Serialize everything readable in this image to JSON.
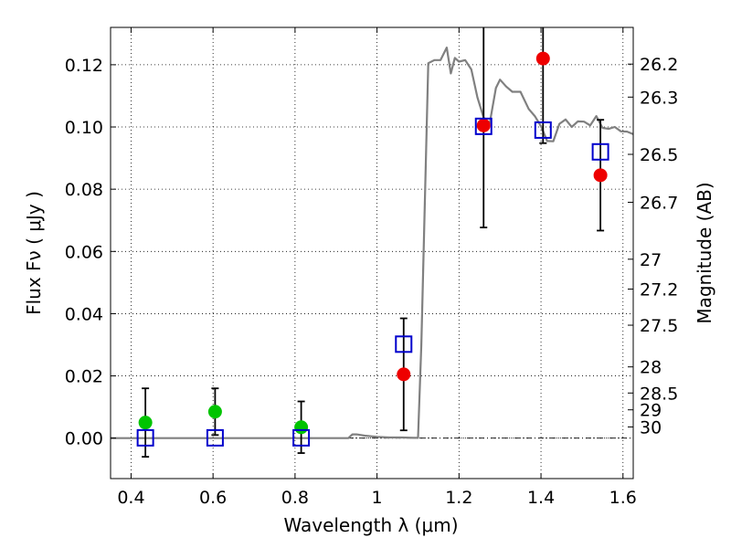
{
  "chart_data": {
    "type": "scatter",
    "title": "",
    "xlabel": "Wavelength  λ (μm)",
    "ylabel": "Flux  Fν  ( μJy )",
    "ylabel_right": "Magnitude (AB)",
    "xlim": [
      0.35,
      1.625
    ],
    "ylim": [
      -0.013,
      0.132
    ],
    "grid": true,
    "x_ticks": [
      0.4,
      0.6,
      0.8,
      1.0,
      1.2,
      1.4,
      1.6
    ],
    "x_tick_labels": [
      "0.4",
      "0.6",
      "0.8",
      "1",
      "1.2",
      "1.4",
      "1.6"
    ],
    "y_ticks": [
      0.0,
      0.02,
      0.04,
      0.06,
      0.08,
      0.1,
      0.12
    ],
    "y_tick_labels": [
      "0.00",
      "0.02",
      "0.04",
      "0.06",
      "0.08",
      "0.10",
      "0.12"
    ],
    "right_ticks": [
      {
        "label": "26.2",
        "flux": 0.1202
      },
      {
        "label": "26.3",
        "flux": 0.1096
      },
      {
        "label": "26.5",
        "flux": 0.0912
      },
      {
        "label": "26.7",
        "flux": 0.0758
      },
      {
        "label": "27",
        "flux": 0.0575
      },
      {
        "label": "27.2",
        "flux": 0.0479
      },
      {
        "label": "27.5",
        "flux": 0.0363
      },
      {
        "label": "28",
        "flux": 0.0229
      },
      {
        "label": "28.5",
        "flux": 0.0145
      },
      {
        "label": "29",
        "flux": 0.0091
      },
      {
        "label": "30",
        "flux": 0.0036
      }
    ],
    "series": [
      {
        "type": "line",
        "color": "#808080",
        "x": [
          0.35,
          0.93,
          0.94,
          0.95,
          0.97,
          1.0,
          1.03,
          1.06,
          1.09,
          1.1,
          1.108,
          1.125,
          1.14,
          1.155,
          1.17,
          1.18,
          1.19,
          1.2,
          1.215,
          1.23,
          1.245,
          1.26,
          1.275,
          1.29,
          1.3,
          1.315,
          1.33,
          1.35,
          1.37,
          1.385,
          1.4,
          1.415,
          1.43,
          1.445,
          1.46,
          1.475,
          1.49,
          1.505,
          1.52,
          1.535,
          1.55,
          1.565,
          1.58,
          1.595,
          1.61,
          1.625
        ],
        "y": [
          0.0,
          0.0,
          0.0012,
          0.0012,
          0.0008,
          0.0004,
          0.0002,
          0.0002,
          0.0001,
          0.0001,
          0.03,
          0.1205,
          0.1215,
          0.1215,
          0.1255,
          0.1172,
          0.1222,
          0.121,
          0.1215,
          0.1185,
          0.1095,
          0.103,
          0.1013,
          0.1125,
          0.1152,
          0.113,
          0.1113,
          0.1113,
          0.1058,
          0.1035,
          0.1002,
          0.0955,
          0.0954,
          0.101,
          0.1024,
          0.1,
          0.1018,
          0.1017,
          0.1005,
          0.1035,
          0.0997,
          0.0994,
          0.1,
          0.0986,
          0.0985,
          0.0977
        ]
      },
      {
        "type": "points",
        "marker": "circle",
        "color": "#00c400",
        "x": [
          0.435,
          0.605,
          0.815
        ],
        "y": [
          0.005,
          0.0085,
          0.0035
        ],
        "err": [
          0.011,
          0.0075,
          0.0083
        ]
      },
      {
        "type": "points",
        "marker": "circle",
        "color": "#ee0000",
        "x": [
          1.065,
          1.26,
          1.405,
          1.545
        ],
        "y": [
          0.0205,
          0.1005,
          0.122,
          0.0845
        ],
        "err": [
          0.018,
          0.0328,
          0.0272,
          0.0178
        ]
      },
      {
        "type": "points",
        "marker": "square-open",
        "color": "#0000cc",
        "x": [
          0.435,
          0.605,
          0.815,
          1.065,
          1.26,
          1.405,
          1.545
        ],
        "y": [
          0.0001,
          0.0001,
          0.0001,
          0.0302,
          0.1002,
          0.099,
          0.092
        ]
      }
    ]
  }
}
